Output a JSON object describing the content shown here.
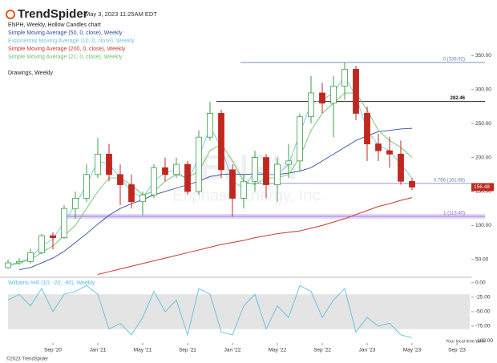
{
  "header": {
    "logo": "TrendSpider",
    "timestamp": "May 3, 2023 11:25AM EDT"
  },
  "watermark": {
    "symbol": "ENPH",
    "company": "Enphase Energy, Inc."
  },
  "footer": {
    "copyright": "©2023 TrendSpider",
    "timezone_note": "Your local time zone"
  },
  "chart_data": [
    {
      "type": "candlestick",
      "title": "ENPH, Weekly, Hollow Candles chart",
      "categories": [
        null,
        null,
        null,
        null,
        "Sep '20",
        null,
        null,
        null,
        "Jan '21",
        null,
        null,
        null,
        "May '21",
        null,
        null,
        null,
        "Sep '21",
        null,
        null,
        null,
        "Jan '22",
        null,
        null,
        null,
        "May '22",
        null,
        null,
        null,
        "Sep '22",
        null,
        null,
        null,
        "Jan '23",
        null,
        null,
        null,
        "May '23",
        null,
        null,
        null,
        "Sep '23"
      ],
      "open": [
        38,
        45,
        47,
        60,
        85,
        82,
        125,
        140,
        175,
        205,
        175,
        160,
        135,
        145,
        185,
        175,
        190,
        150,
        230,
        265,
        182,
        140,
        165,
        200,
        160,
        190,
        195,
        260,
        295,
        280,
        305,
        330,
        265,
        220,
        210,
        205,
        165,
        null,
        null,
        null,
        null
      ],
      "high": [
        50,
        52,
        66,
        88,
        90,
        130,
        150,
        190,
        229,
        220,
        190,
        175,
        150,
        190,
        200,
        200,
        195,
        240,
        282,
        270,
        190,
        175,
        210,
        205,
        200,
        220,
        265,
        320,
        310,
        320,
        340,
        335,
        275,
        235,
        230,
        225,
        170,
        null,
        null,
        null,
        null
      ],
      "low": [
        36,
        42,
        44,
        58,
        65,
        80,
        110,
        135,
        170,
        165,
        130,
        125,
        115,
        140,
        165,
        170,
        145,
        145,
        225,
        170,
        113,
        125,
        150,
        140,
        135,
        170,
        180,
        250,
        265,
        230,
        285,
        255,
        195,
        195,
        185,
        160,
        152,
        null,
        null,
        null,
        null
      ],
      "close": [
        45,
        47,
        60,
        85,
        82,
        125,
        140,
        175,
        205,
        175,
        160,
        135,
        145,
        185,
        175,
        190,
        150,
        230,
        265,
        182,
        140,
        165,
        200,
        160,
        190,
        195,
        260,
        295,
        280,
        305,
        330,
        265,
        220,
        210,
        205,
        165,
        156.48,
        null,
        null,
        null,
        null
      ],
      "up_color": "#3f9e4a",
      "down_color": "#c0281f",
      "last_price": 156.48,
      "series": [
        {
          "name": "Simple Moving Average (50, 0, close), Weekly",
          "color": "#2f4f9e",
          "values": [
            null,
            35,
            38,
            45,
            52,
            62,
            75,
            88,
            102,
            115,
            125,
            132,
            138,
            145,
            150,
            155,
            160,
            165,
            172,
            175,
            176,
            175,
            176,
            175,
            175,
            177,
            180,
            185,
            195,
            205,
            215,
            225,
            232,
            238,
            240,
            242,
            243,
            null,
            null,
            null,
            null
          ]
        },
        {
          "name": "Exponential Moving Average (10, 0, close), Weekly",
          "color": "#6cc6e6",
          "values": [
            42,
            46,
            52,
            70,
            80,
            105,
            130,
            160,
            195,
            190,
            170,
            150,
            140,
            165,
            178,
            182,
            165,
            200,
            245,
            215,
            165,
            155,
            180,
            175,
            175,
            190,
            235,
            280,
            285,
            295,
            320,
            290,
            240,
            218,
            210,
            190,
            170,
            null,
            null,
            null,
            null
          ]
        },
        {
          "name": "Simple Moving Average (200, 0, close), Weekly",
          "color": "#c8372d",
          "values": [
            null,
            null,
            null,
            null,
            null,
            null,
            null,
            null,
            28,
            32,
            36,
            40,
            44,
            48,
            52,
            56,
            60,
            64,
            68,
            72,
            75,
            78,
            82,
            85,
            88,
            90,
            92,
            96,
            100,
            105,
            110,
            116,
            122,
            128,
            132,
            137,
            141,
            null,
            null,
            null,
            null
          ]
        },
        {
          "name": "Simple Moving Average (21, 0, close), Weekly",
          "color": "#6cc46c",
          "values": [
            40,
            45,
            50,
            60,
            70,
            85,
            100,
            125,
            150,
            170,
            170,
            160,
            145,
            150,
            165,
            175,
            170,
            180,
            210,
            220,
            195,
            165,
            160,
            170,
            170,
            175,
            200,
            240,
            265,
            280,
            295,
            295,
            270,
            240,
            225,
            215,
            200,
            null,
            null,
            null,
            null
          ]
        }
      ],
      "drawings_label": "Drawings, Weekly",
      "annotations": [
        {
          "value": 339.92,
          "label": "0 (339.92)",
          "color": "#6b7fb0"
        },
        {
          "value": 282.46,
          "label": "282.46",
          "color": "#222222"
        },
        {
          "value": 161.88,
          "label": "0.786 (161.88)",
          "color": "#6b7fb0"
        },
        {
          "value": 113.4,
          "label": "1 (113.40)",
          "color": "#8a5fd6"
        }
      ],
      "ylim": [
        25,
        420
      ],
      "yticks": [
        {
          "value": 50,
          "label": "50.00"
        },
        {
          "value": 100,
          "label": "100.00"
        },
        {
          "value": 150,
          "label": "150.00"
        },
        {
          "value": 200,
          "label": "200.00"
        },
        {
          "value": 250,
          "label": "250.00"
        },
        {
          "value": 300,
          "label": "300.00"
        },
        {
          "value": 350,
          "label": "350.00"
        }
      ]
    },
    {
      "type": "line",
      "title": "Williams %R (10, -20, -80), Weekly",
      "series": [
        {
          "name": "Williams %R",
          "color": "#5bbfe3",
          "values": [
            -30,
            -20,
            -40,
            -10,
            -50,
            -20,
            -15,
            -5,
            -20,
            -80,
            -70,
            -90,
            -60,
            -15,
            -50,
            -30,
            -90,
            -10,
            -20,
            -85,
            -90,
            -40,
            -20,
            -80,
            -40,
            -60,
            -5,
            -15,
            -60,
            -30,
            -10,
            -85,
            -60,
            -75,
            -70,
            -90,
            -95,
            null,
            null,
            null,
            null
          ]
        }
      ],
      "band": [
        -80,
        -20
      ],
      "band_color": "#e4e4e4",
      "ylim": [
        -104,
        8
      ],
      "yticks": [
        {
          "value": 0,
          "label": "0.00"
        },
        {
          "value": -25,
          "label": "-25.00"
        },
        {
          "value": -50,
          "label": "-50.00"
        },
        {
          "value": -75,
          "label": "-75.00"
        },
        {
          "value": -100,
          "label": "-100.00"
        }
      ]
    }
  ]
}
